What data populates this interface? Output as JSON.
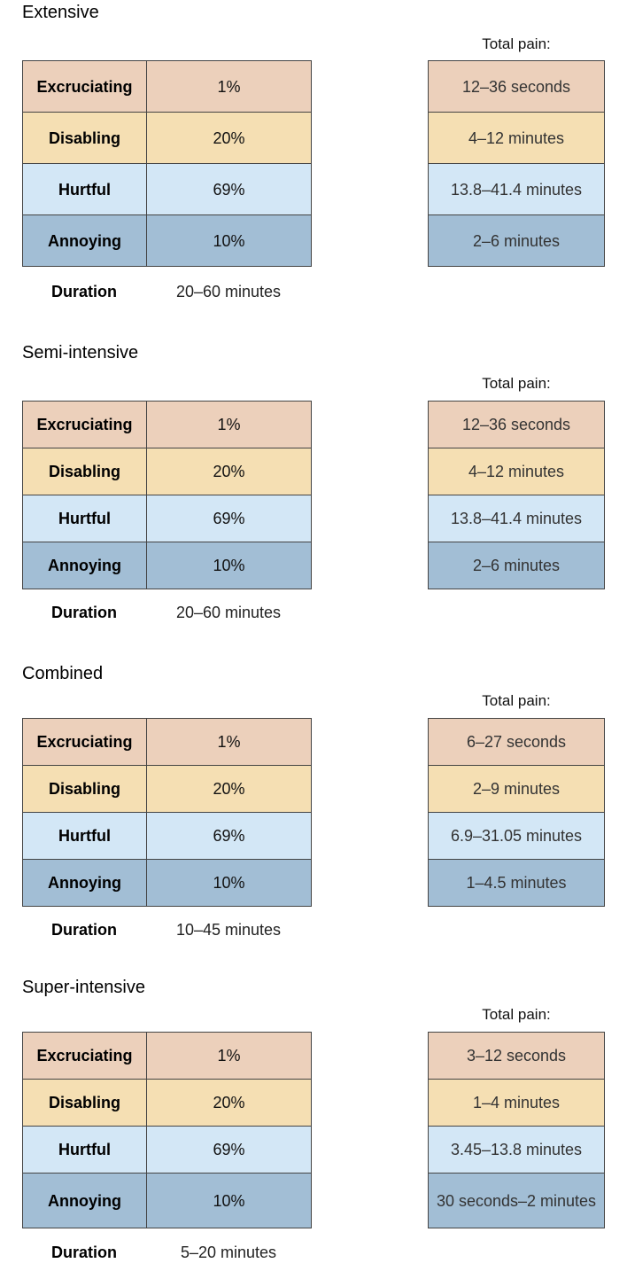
{
  "total_pain_label": "Total pain:",
  "duration_label": "Duration",
  "sections": [
    {
      "title": "Extensive",
      "rows": [
        {
          "name": "Excruciating",
          "percent": "1%",
          "total": "12–36 seconds",
          "color": "#ecd0bb"
        },
        {
          "name": "Disabling",
          "percent": "20%",
          "total": "4–12 minutes",
          "color": "#f5dfb3"
        },
        {
          "name": "Hurtful",
          "percent": "69%",
          "total": "13.8–41.4 minutes",
          "color": "#d3e7f6"
        },
        {
          "name": "Annoying",
          "percent": "10%",
          "total": "2–6 minutes",
          "color": "#a2bed5"
        }
      ],
      "duration": "20–60 minutes"
    },
    {
      "title": "Semi-intensive",
      "rows": [
        {
          "name": "Excruciating",
          "percent": "1%",
          "total": "12–36 seconds",
          "color": "#ecd0bb"
        },
        {
          "name": "Disabling",
          "percent": "20%",
          "total": "4–12 minutes",
          "color": "#f5dfb3"
        },
        {
          "name": "Hurtful",
          "percent": "69%",
          "total": "13.8–41.4 minutes",
          "color": "#d3e7f6"
        },
        {
          "name": "Annoying",
          "percent": "10%",
          "total": "2–6 minutes",
          "color": "#a2bed5"
        }
      ],
      "duration": "20–60 minutes"
    },
    {
      "title": "Combined",
      "rows": [
        {
          "name": "Excruciating",
          "percent": "1%",
          "total": "6–27 seconds",
          "color": "#ecd0bb"
        },
        {
          "name": "Disabling",
          "percent": "20%",
          "total": "2–9 minutes",
          "color": "#f5dfb3"
        },
        {
          "name": "Hurtful",
          "percent": "69%",
          "total": "6.9–31.05 minutes",
          "color": "#d3e7f6"
        },
        {
          "name": "Annoying",
          "percent": "10%",
          "total": "1–4.5 minutes",
          "color": "#a2bed5"
        }
      ],
      "duration": "10–45 minutes"
    },
    {
      "title": "Super-intensive",
      "rows": [
        {
          "name": "Excruciating",
          "percent": "1%",
          "total": "3–12 seconds",
          "color": "#ecd0bb"
        },
        {
          "name": "Disabling",
          "percent": "20%",
          "total": "1–4 minutes",
          "color": "#f5dfb3"
        },
        {
          "name": "Hurtful",
          "percent": "69%",
          "total": "3.45–13.8 minutes",
          "color": "#d3e7f6"
        },
        {
          "name": "Annoying",
          "percent": "10%",
          "total": "30 seconds–2 minutes",
          "color": "#a2bed5"
        }
      ],
      "duration": "5–20 minutes"
    }
  ]
}
